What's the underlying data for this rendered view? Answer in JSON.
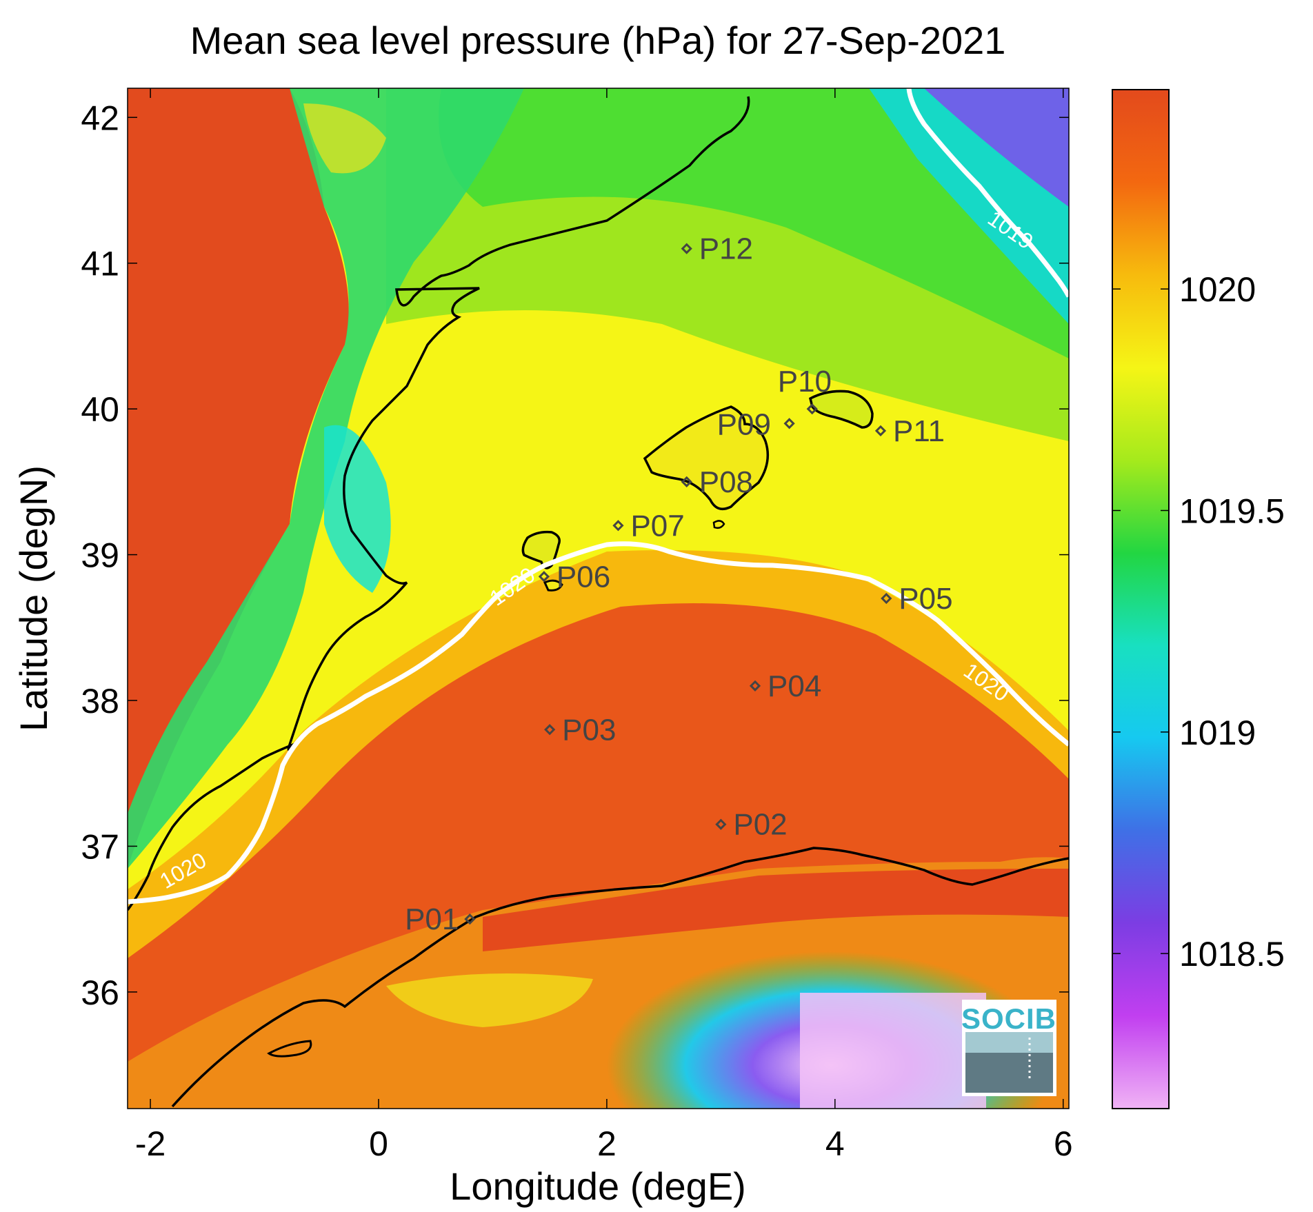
{
  "chart_data": {
    "type": "heatmap",
    "title": "Mean sea level pressure (hPa) for 27-Sep-2021",
    "xlabel": "Longitude (degE)",
    "ylabel": "Latitude (degN)",
    "xlim": [
      -2.2,
      6.05
    ],
    "ylim": [
      35.2,
      42.2
    ],
    "x_ticks": [
      -2,
      0,
      2,
      4,
      6
    ],
    "y_ticks": [
      36,
      37,
      38,
      39,
      40,
      41,
      42
    ],
    "colorbar": {
      "range": [
        1018.15,
        1020.45
      ],
      "ticks": [
        1018.5,
        1019,
        1019.5,
        1020
      ],
      "colors": [
        "#f0b3f5",
        "#c13ff0",
        "#7c3de3",
        "#3f70e6",
        "#16c9f0",
        "#18e0c0",
        "#22d642",
        "#a5ea1c",
        "#f5f516",
        "#f7bb0d",
        "#f36810",
        "#e34a1c"
      ]
    },
    "contours": [
      {
        "level": 1020,
        "label": "1020"
      },
      {
        "level": 1019,
        "label": "1019"
      }
    ],
    "stations": [
      {
        "name": "P01",
        "lon": 0.8,
        "lat": 36.5
      },
      {
        "name": "P02",
        "lon": 3.0,
        "lat": 37.15
      },
      {
        "name": "P03",
        "lon": 1.5,
        "lat": 37.8
      },
      {
        "name": "P04",
        "lon": 3.3,
        "lat": 38.1
      },
      {
        "name": "P05",
        "lon": 4.45,
        "lat": 38.7
      },
      {
        "name": "P06",
        "lon": 1.45,
        "lat": 38.85
      },
      {
        "name": "P07",
        "lon": 2.1,
        "lat": 39.2
      },
      {
        "name": "P08",
        "lon": 2.7,
        "lat": 39.5
      },
      {
        "name": "P09",
        "lon": 3.6,
        "lat": 39.9
      },
      {
        "name": "P10",
        "lon": 3.8,
        "lat": 40.0
      },
      {
        "name": "P11",
        "lon": 4.4,
        "lat": 39.85
      },
      {
        "name": "P12",
        "lon": 2.7,
        "lat": 41.1
      }
    ]
  },
  "logo": {
    "text": "SOCIB"
  }
}
